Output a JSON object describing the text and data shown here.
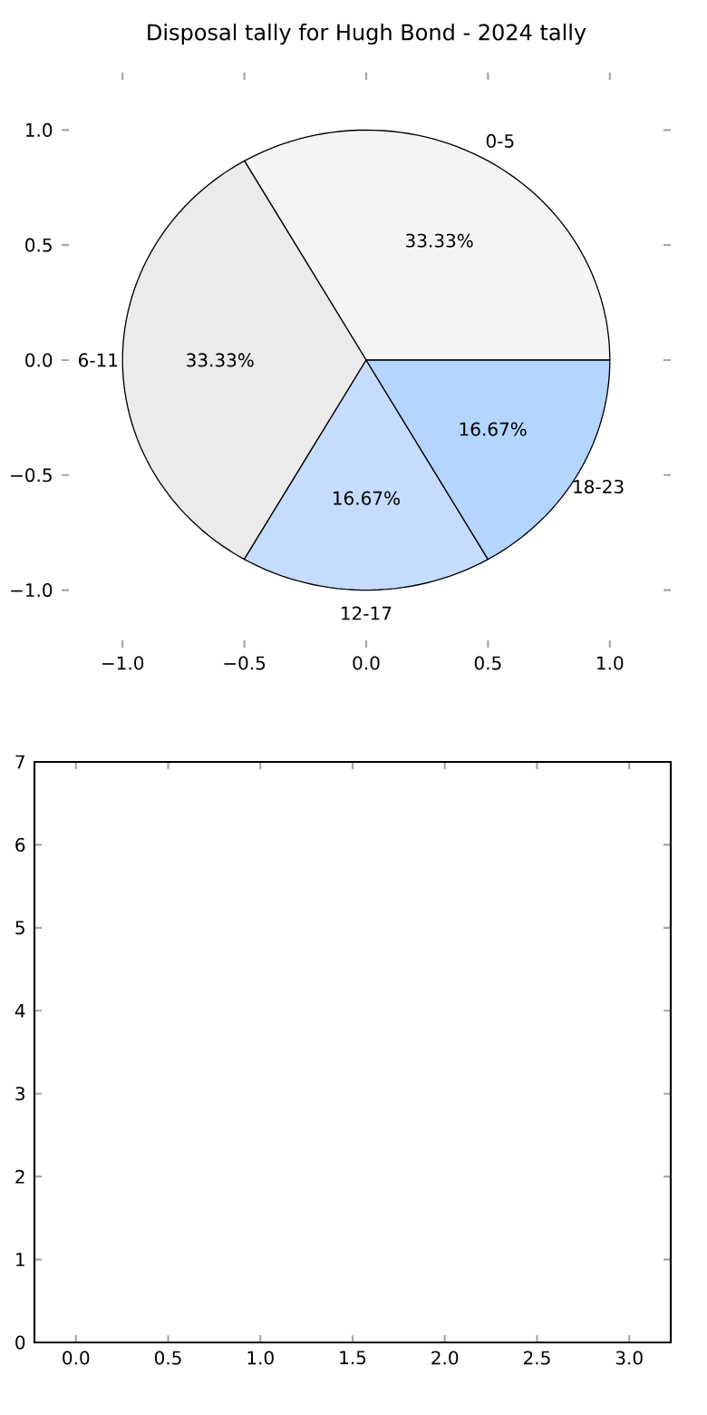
{
  "chart_data": [
    {
      "type": "pie",
      "title": "Disposal tally for Hugh Bond - 2024 tally",
      "categories": [
        "0-5",
        "6-11",
        "12-17",
        "18-23"
      ],
      "values": [
        33.33,
        33.33,
        16.67,
        16.67
      ],
      "value_labels": [
        "33.33%",
        "33.33%",
        "16.67%",
        "16.67%"
      ],
      "colors": [
        "#f4f4f4",
        "#ebebeb",
        "#c6dcff",
        "#b3d5ff"
      ],
      "annotations": [
        "−1.0",
        "−0.5",
        "0.0",
        "0.5",
        "1.0",
        "−1.0",
        "−0.5",
        "0.0",
        "0.5",
        "1.0"
      ]
    },
    {
      "type": "line",
      "xlim": [
        -0.225,
        3.225
      ],
      "ylim": [
        0,
        7
      ],
      "xticks": [
        {
          "value": 0,
          "label": "0.0"
        },
        {
          "value": 0.5,
          "label": "0.5"
        },
        {
          "value": 1.0,
          "label": "1.0"
        },
        {
          "value": 1.5,
          "label": "1.5"
        },
        {
          "value": 2.0,
          "label": "2.0"
        },
        {
          "value": 2.5,
          "label": "2.5"
        },
        {
          "value": 3.0,
          "label": "3.0"
        }
      ],
      "yticks": [
        0,
        1,
        2,
        3,
        4,
        5,
        6,
        7
      ]
    }
  ]
}
